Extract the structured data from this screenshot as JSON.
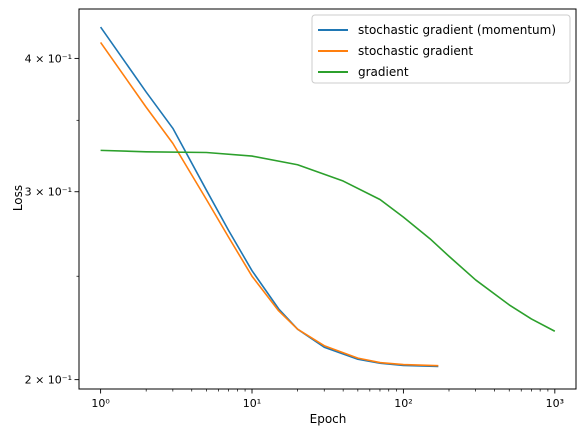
{
  "chart_data": {
    "type": "line",
    "xlabel": "Epoch",
    "ylabel": "Loss",
    "xscale": "log",
    "yscale": "log",
    "xlim": [
      0.72,
      1380
    ],
    "ylim": [
      0.196,
      0.445
    ],
    "grid": false,
    "legend_position": "top-right",
    "x_ticks": [
      {
        "value": 1,
        "label": "10⁰"
      },
      {
        "value": 10,
        "label": "10¹"
      },
      {
        "value": 100,
        "label": "10²"
      },
      {
        "value": 1000,
        "label": "10³"
      }
    ],
    "y_ticks": [
      {
        "value": 0.2,
        "label": "2 × 10⁻¹"
      },
      {
        "value": 0.3,
        "label": "3 × 10⁻¹"
      },
      {
        "value": 0.4,
        "label": "4 × 10⁻¹"
      }
    ],
    "series": [
      {
        "name": "stochastic gradient (momentum)",
        "color": "#1f77b4",
        "x": [
          1,
          2,
          3,
          5,
          7,
          10,
          15,
          20,
          30,
          50,
          70,
          100,
          170
        ],
        "y": [
          0.428,
          0.372,
          0.344,
          0.301,
          0.276,
          0.253,
          0.233,
          0.223,
          0.2145,
          0.209,
          0.2072,
          0.2062,
          0.2058
        ]
      },
      {
        "name": "stochastic gradient",
        "color": "#ff7f0e",
        "x": [
          1,
          2,
          3,
          5,
          7,
          10,
          15,
          20,
          30,
          50,
          70,
          100,
          170
        ],
        "y": [
          0.414,
          0.36,
          0.333,
          0.295,
          0.272,
          0.25,
          0.232,
          0.223,
          0.2152,
          0.2095,
          0.2075,
          0.2066,
          0.2061
        ]
      },
      {
        "name": "gradient",
        "color": "#2ca02c",
        "x": [
          1,
          2,
          5,
          10,
          20,
          40,
          70,
          100,
          150,
          200,
          300,
          500,
          700,
          1000
        ],
        "y": [
          0.328,
          0.327,
          0.3265,
          0.324,
          0.318,
          0.307,
          0.295,
          0.284,
          0.271,
          0.261,
          0.248,
          0.235,
          0.228,
          0.222
        ]
      }
    ]
  }
}
